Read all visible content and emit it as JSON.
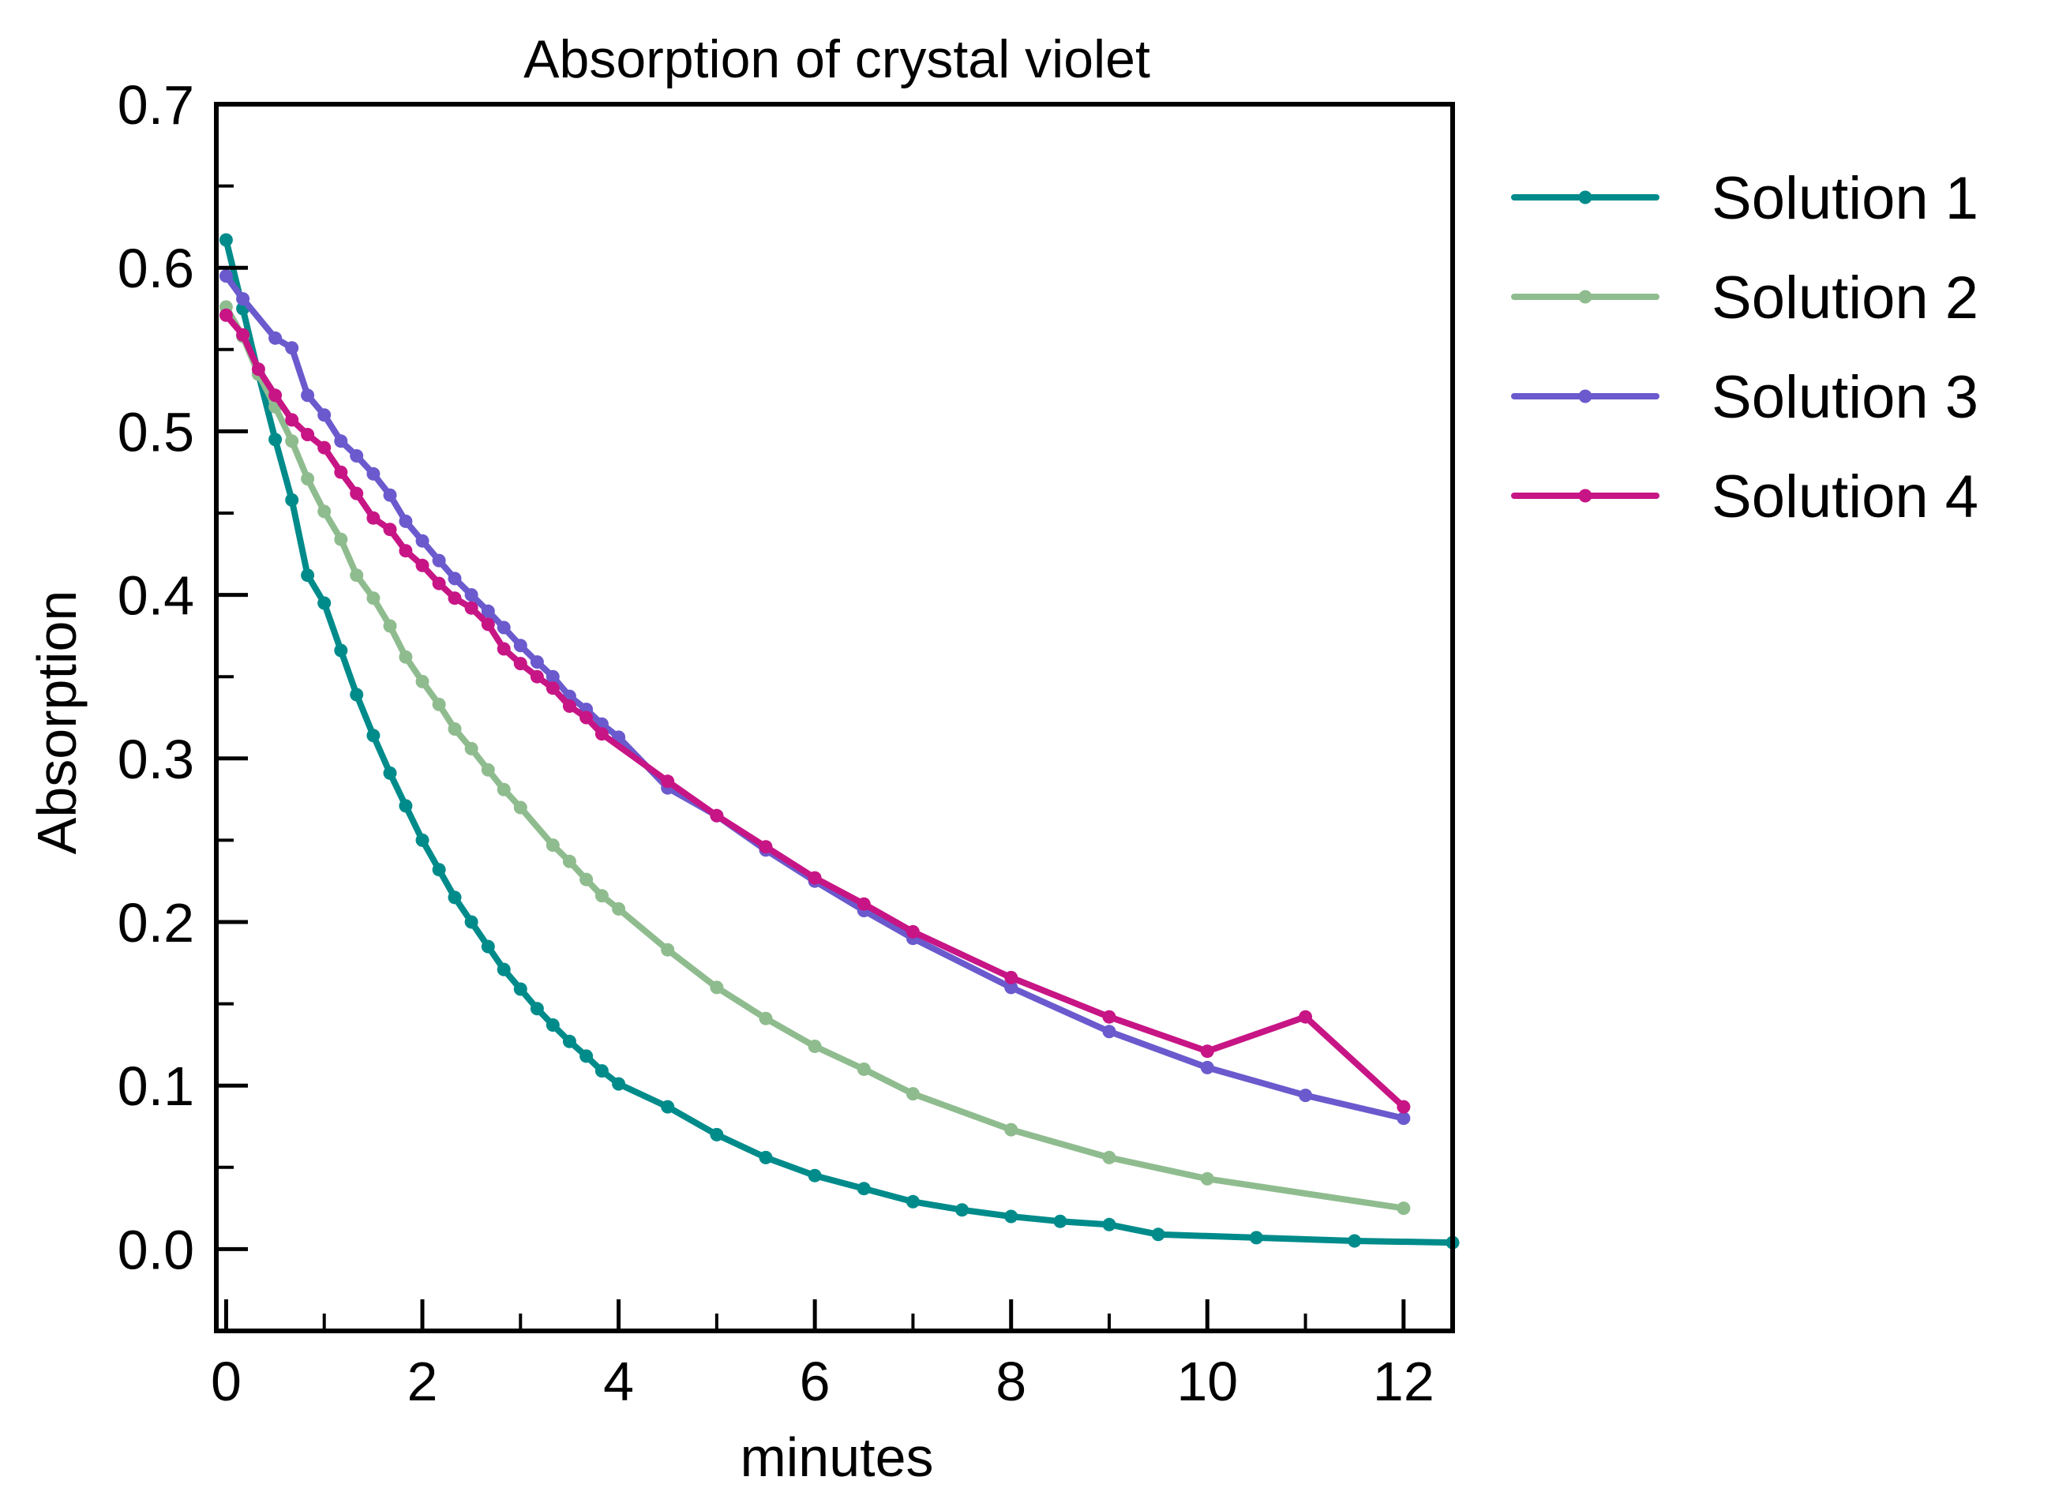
{
  "chart_data": {
    "type": "line",
    "title": "Absorption of crystal violet",
    "xlabel": "minutes",
    "ylabel": "Absorption",
    "xlim": [
      -0.1,
      12.5
    ],
    "ylim": [
      -0.05,
      0.7
    ],
    "xticks": [
      0,
      2,
      4,
      6,
      8,
      10,
      12
    ],
    "xtick_labels": [
      "0",
      "2",
      "4",
      "6",
      "8",
      "10",
      "12"
    ],
    "yticks": [
      0.0,
      0.1,
      0.2,
      0.3,
      0.4,
      0.5,
      0.6,
      0.7
    ],
    "ytick_labels": [
      "0.0",
      "0.1",
      "0.2",
      "0.3",
      "0.4",
      "0.5",
      "0.6",
      "0.7"
    ],
    "grid": false,
    "legend_position": "outside-right-top",
    "series": [
      {
        "name": "Solution 1",
        "color": "#008b8b",
        "x": [
          0,
          0.17,
          0.33,
          0.5,
          0.67,
          0.83,
          1.0,
          1.17,
          1.33,
          1.5,
          1.67,
          1.83,
          2.0,
          2.17,
          2.33,
          2.5,
          2.67,
          2.83,
          3.0,
          3.17,
          3.33,
          3.5,
          3.67,
          3.83,
          4.0,
          4.5,
          5.0,
          5.5,
          6.0,
          6.5,
          7.0,
          7.5,
          8.0,
          8.5,
          9.0,
          9.5,
          10.5,
          11.5,
          12.5
        ],
        "y": [
          0.617,
          0.575,
          0.535,
          0.495,
          0.458,
          0.412,
          0.395,
          0.366,
          0.339,
          0.314,
          0.291,
          0.271,
          0.25,
          0.232,
          0.215,
          0.2,
          0.185,
          0.171,
          0.159,
          0.147,
          0.137,
          0.127,
          0.118,
          0.109,
          0.101,
          0.087,
          0.07,
          0.056,
          0.045,
          0.037,
          0.029,
          0.024,
          0.02,
          0.017,
          0.015,
          0.009,
          0.007,
          0.005,
          0.004
        ]
      },
      {
        "name": "Solution 2",
        "color": "#8fbc8f",
        "x": [
          0,
          0.17,
          0.33,
          0.5,
          0.67,
          0.83,
          1.0,
          1.17,
          1.33,
          1.5,
          1.67,
          1.83,
          2.0,
          2.17,
          2.33,
          2.5,
          2.67,
          2.83,
          3.0,
          3.33,
          3.5,
          3.67,
          3.83,
          4.0,
          4.5,
          5.0,
          5.5,
          6.0,
          6.5,
          7.0,
          8.0,
          9.0,
          10.0,
          12.0
        ],
        "y": [
          0.576,
          0.558,
          0.535,
          0.515,
          0.494,
          0.471,
          0.451,
          0.434,
          0.412,
          0.398,
          0.381,
          0.362,
          0.347,
          0.333,
          0.318,
          0.306,
          0.293,
          0.281,
          0.27,
          0.247,
          0.237,
          0.226,
          0.216,
          0.208,
          0.183,
          0.16,
          0.141,
          0.124,
          0.11,
          0.095,
          0.073,
          0.056,
          0.043,
          0.025
        ]
      },
      {
        "name": "Solution 3",
        "color": "#6a5acd",
        "x": [
          0,
          0.17,
          0.5,
          0.67,
          0.83,
          1.0,
          1.17,
          1.33,
          1.5,
          1.67,
          1.83,
          2.0,
          2.17,
          2.33,
          2.5,
          2.67,
          2.83,
          3.0,
          3.17,
          3.33,
          3.5,
          3.67,
          3.83,
          4.0,
          4.5,
          5.0,
          5.5,
          6.0,
          6.5,
          7.0,
          8.0,
          9.0,
          10.0,
          11.0,
          12.0
        ],
        "y": [
          0.595,
          0.581,
          0.557,
          0.551,
          0.522,
          0.51,
          0.494,
          0.485,
          0.474,
          0.461,
          0.445,
          0.433,
          0.421,
          0.41,
          0.4,
          0.39,
          0.38,
          0.369,
          0.359,
          0.35,
          0.338,
          0.33,
          0.321,
          0.313,
          0.282,
          0.265,
          0.244,
          0.225,
          0.207,
          0.19,
          0.16,
          0.133,
          0.111,
          0.094,
          0.08
        ]
      },
      {
        "name": "Solution 4",
        "color": "#c71585",
        "x": [
          0,
          0.17,
          0.33,
          0.5,
          0.67,
          0.83,
          1.0,
          1.17,
          1.33,
          1.5,
          1.67,
          1.83,
          2.0,
          2.17,
          2.33,
          2.5,
          2.67,
          2.83,
          3.0,
          3.17,
          3.33,
          3.5,
          3.67,
          3.83,
          4.5,
          5.0,
          5.5,
          6.0,
          6.5,
          7.0,
          8.0,
          9.0,
          10.0,
          11.0,
          12.0
        ],
        "y": [
          0.571,
          0.559,
          0.538,
          0.522,
          0.507,
          0.498,
          0.49,
          0.475,
          0.462,
          0.447,
          0.44,
          0.427,
          0.418,
          0.407,
          0.398,
          0.392,
          0.382,
          0.367,
          0.358,
          0.35,
          0.343,
          0.332,
          0.325,
          0.315,
          0.286,
          0.265,
          0.246,
          0.227,
          0.211,
          0.194,
          0.166,
          0.142,
          0.121,
          0.142,
          0.087
        ]
      }
    ]
  }
}
